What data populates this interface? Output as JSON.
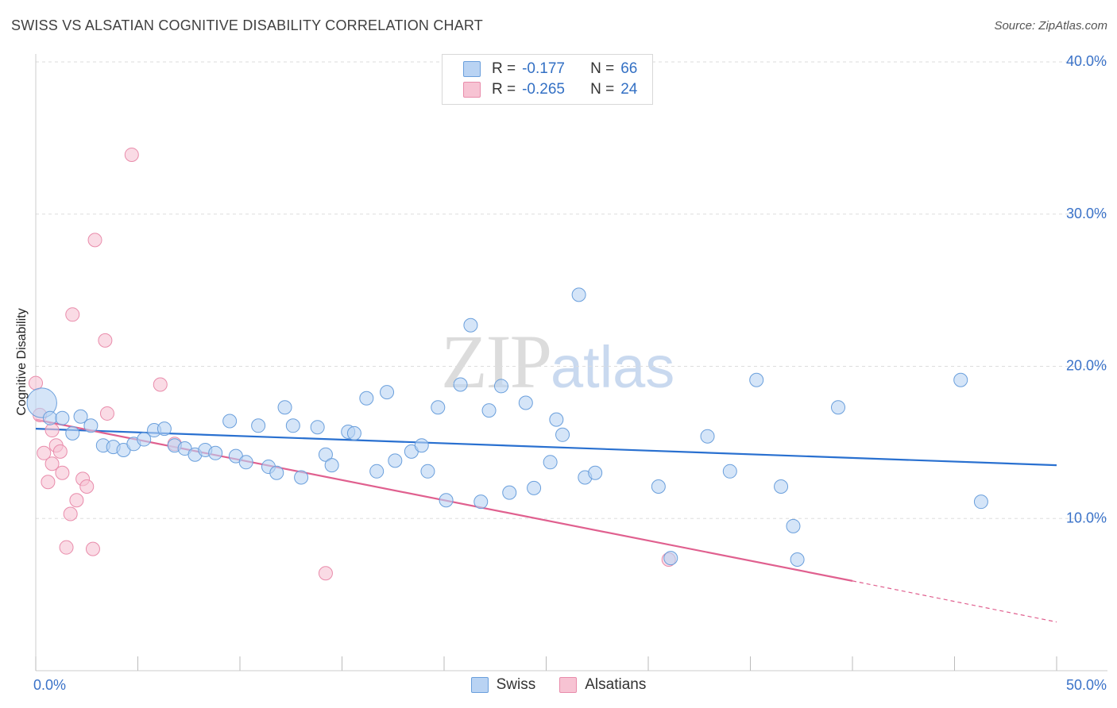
{
  "header": {
    "title": "SWISS VS ALSATIAN COGNITIVE DISABILITY CORRELATION CHART",
    "source": "Source: ZipAtlas.com"
  },
  "watermark": {
    "zip": "ZIP",
    "atlas": "atlas"
  },
  "legend": {
    "swiss": {
      "r_label": "R =",
      "r_value": "-0.177",
      "n_label": "N =",
      "n_value": "66"
    },
    "alsatians": {
      "r_label": "R =",
      "r_value": "-0.265",
      "n_label": "N =",
      "n_value": "24"
    }
  },
  "colors": {
    "swiss_fill": "#b9d3f3",
    "swiss_stroke": "#6a9fdc",
    "swiss_line": "#2970d0",
    "alsatian_fill": "#f7c3d3",
    "alsatian_stroke": "#e98cab",
    "alsatian_line": "#e0608f",
    "tick_label": "#3a72c8",
    "grid": "#dddddd"
  },
  "chart_data": {
    "type": "scatter",
    "title": "SWISS VS ALSATIAN COGNITIVE DISABILITY CORRELATION CHART",
    "xlabel": "",
    "ylabel": "Cognitive Disability",
    "xlim": [
      0,
      50
    ],
    "ylim": [
      0,
      40
    ],
    "y_ticks": [
      10,
      20,
      30,
      40
    ],
    "y_tick_labels": [
      "10.0%",
      "20.0%",
      "30.0%",
      "40.0%"
    ],
    "x_tick_labels": [
      "0.0%",
      "50.0%"
    ],
    "grid": true,
    "legend_position": "bottom",
    "series": [
      {
        "name": "Swiss",
        "trend": {
          "x": [
            0,
            50
          ],
          "y": [
            15.9,
            13.5
          ]
        },
        "points": [
          [
            0.3,
            17.6,
            2.2
          ],
          [
            0.7,
            16.6,
            1
          ],
          [
            1.3,
            16.6,
            1
          ],
          [
            1.8,
            15.6,
            1
          ],
          [
            2.2,
            16.7,
            1
          ],
          [
            2.7,
            16.1,
            1
          ],
          [
            3.3,
            14.8,
            1
          ],
          [
            3.8,
            14.7,
            1
          ],
          [
            4.3,
            14.5,
            1
          ],
          [
            4.8,
            14.9,
            1
          ],
          [
            5.3,
            15.2,
            1
          ],
          [
            5.8,
            15.8,
            1
          ],
          [
            6.3,
            15.9,
            1
          ],
          [
            6.8,
            14.8,
            1
          ],
          [
            7.3,
            14.6,
            1
          ],
          [
            7.8,
            14.2,
            1
          ],
          [
            8.3,
            14.5,
            1
          ],
          [
            8.8,
            14.3,
            1
          ],
          [
            9.5,
            16.4,
            1
          ],
          [
            9.8,
            14.1,
            1
          ],
          [
            10.3,
            13.7,
            1
          ],
          [
            10.9,
            16.1,
            1
          ],
          [
            11.4,
            13.4,
            1
          ],
          [
            11.8,
            13.0,
            1
          ],
          [
            12.2,
            17.3,
            1
          ],
          [
            12.6,
            16.1,
            1
          ],
          [
            13.0,
            12.7,
            1
          ],
          [
            13.8,
            16.0,
            1
          ],
          [
            14.2,
            14.2,
            1
          ],
          [
            14.5,
            13.5,
            1
          ],
          [
            15.3,
            15.7,
            1
          ],
          [
            15.6,
            15.6,
            1
          ],
          [
            16.2,
            17.9,
            1
          ],
          [
            16.7,
            13.1,
            1
          ],
          [
            17.2,
            18.3,
            1
          ],
          [
            17.6,
            13.8,
            1
          ],
          [
            18.4,
            14.4,
            1
          ],
          [
            18.9,
            14.8,
            1
          ],
          [
            19.2,
            13.1,
            1
          ],
          [
            19.7,
            17.3,
            1
          ],
          [
            20.1,
            11.2,
            1
          ],
          [
            20.8,
            18.8,
            1
          ],
          [
            21.3,
            22.7,
            1
          ],
          [
            21.8,
            11.1,
            1
          ],
          [
            22.2,
            17.1,
            1
          ],
          [
            22.8,
            18.7,
            1
          ],
          [
            23.2,
            11.7,
            1
          ],
          [
            24.0,
            17.6,
            1
          ],
          [
            24.4,
            12.0,
            1
          ],
          [
            25.2,
            13.7,
            1
          ],
          [
            25.5,
            16.5,
            1
          ],
          [
            25.8,
            15.5,
            1
          ],
          [
            26.6,
            24.7,
            1
          ],
          [
            26.9,
            12.7,
            1
          ],
          [
            27.4,
            13.0,
            1
          ],
          [
            30.5,
            12.1,
            1
          ],
          [
            31.1,
            7.4,
            1
          ],
          [
            32.9,
            15.4,
            1
          ],
          [
            34.0,
            13.1,
            1
          ],
          [
            35.3,
            19.1,
            1
          ],
          [
            36.5,
            12.1,
            1
          ],
          [
            37.1,
            9.5,
            1
          ],
          [
            37.3,
            7.3,
            1
          ],
          [
            39.3,
            17.3,
            1
          ],
          [
            45.3,
            19.1,
            1
          ],
          [
            46.3,
            11.1,
            1
          ]
        ]
      },
      {
        "name": "Alsatians",
        "trend": {
          "x": [
            0,
            40
          ],
          "y": [
            16.5,
            5.9
          ],
          "dashed_to": [
            50,
            3.2
          ]
        },
        "points": [
          [
            0.0,
            18.9,
            1
          ],
          [
            0.2,
            16.8,
            1
          ],
          [
            0.4,
            14.3,
            1
          ],
          [
            0.6,
            12.4,
            1
          ],
          [
            0.8,
            13.6,
            1
          ],
          [
            0.8,
            15.8,
            1
          ],
          [
            1.0,
            14.8,
            1
          ],
          [
            1.2,
            14.4,
            1
          ],
          [
            1.3,
            13.0,
            1
          ],
          [
            1.5,
            8.1,
            1
          ],
          [
            1.7,
            10.3,
            1
          ],
          [
            1.8,
            23.4,
            1
          ],
          [
            2.0,
            11.2,
            1
          ],
          [
            2.3,
            12.6,
            1
          ],
          [
            2.5,
            12.1,
            1
          ],
          [
            2.8,
            8.0,
            1
          ],
          [
            2.9,
            28.3,
            1
          ],
          [
            3.4,
            21.7,
            1
          ],
          [
            3.5,
            16.9,
            1
          ],
          [
            4.7,
            33.9,
            1
          ],
          [
            6.1,
            18.8,
            1
          ],
          [
            6.8,
            14.9,
            1
          ],
          [
            14.2,
            6.4,
            1
          ],
          [
            31.0,
            7.3,
            1
          ]
        ]
      }
    ]
  }
}
